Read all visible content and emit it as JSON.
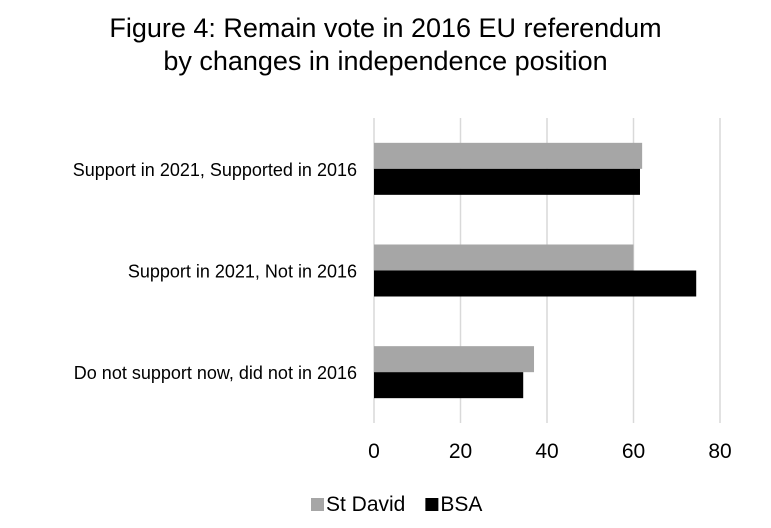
{
  "chart_data": {
    "type": "bar",
    "orientation": "horizontal",
    "title": [
      "Figure 4: Remain vote in 2016 EU referendum",
      "by changes in independence position"
    ],
    "categories": [
      "Support in 2021, Supported in 2016",
      "Support in 2021, Not in 2016",
      "Do not support now, did not in 2016"
    ],
    "series": [
      {
        "name": "St David",
        "values": [
          62,
          60,
          37
        ],
        "color": "#a6a6a6"
      },
      {
        "name": "BSA",
        "values": [
          61.5,
          74.5,
          34.5
        ],
        "color": "#000000"
      }
    ],
    "xlim": [
      0,
      80
    ],
    "xticks": [
      0,
      20,
      40,
      60,
      80
    ],
    "xticks_text": [
      "0",
      "20",
      "40",
      "60",
      "80"
    ],
    "grid": true,
    "legend_position": "bottom"
  }
}
